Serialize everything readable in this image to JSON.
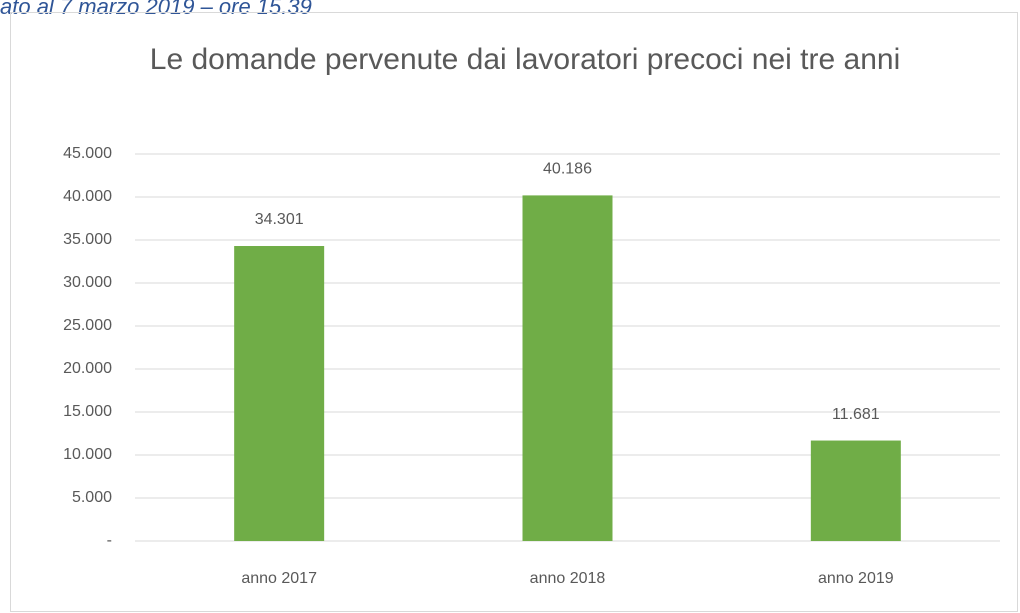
{
  "note_text": "ato al 7 marzo 2019 – ore 15.39",
  "chart_data": {
    "type": "bar",
    "title": "Le domande pervenute dai lavoratori precoci nei tre anni",
    "categories": [
      "anno 2017",
      "anno 2018",
      "anno 2019"
    ],
    "values": [
      34301,
      40186,
      11681
    ],
    "value_labels": [
      "34.301",
      "40.186",
      "11.681"
    ],
    "color": "#70ad47",
    "ylim": [
      0,
      45000
    ],
    "yticks": [
      {
        "value": 0,
        "label": "-"
      },
      {
        "value": 5000,
        "label": "5.000"
      },
      {
        "value": 10000,
        "label": "10.000"
      },
      {
        "value": 15000,
        "label": "15.000"
      },
      {
        "value": 20000,
        "label": "20.000"
      },
      {
        "value": 25000,
        "label": "25.000"
      },
      {
        "value": 30000,
        "label": "30.000"
      },
      {
        "value": 35000,
        "label": "35.000"
      },
      {
        "value": 40000,
        "label": "40.000"
      },
      {
        "value": 45000,
        "label": "45.000"
      }
    ],
    "grid": true
  }
}
